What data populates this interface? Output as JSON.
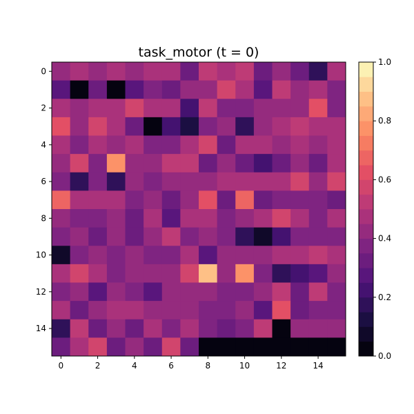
{
  "chart_data": {
    "type": "heatmap",
    "title": "task_motor (t = 0)",
    "xlabel": "",
    "ylabel": "",
    "colormap": "magma",
    "colorbar": {
      "range": [
        0,
        1
      ],
      "levels": 20,
      "ticks": [
        0.0,
        0.2,
        0.4,
        0.6,
        0.8,
        1.0
      ],
      "tick_labels": [
        "0.0",
        "0.2",
        "0.4",
        "0.6",
        "0.8",
        "1.0"
      ]
    },
    "x_ticks": [
      0,
      2,
      4,
      6,
      8,
      10,
      12,
      14
    ],
    "y_ticks": [
      0,
      2,
      4,
      6,
      8,
      10,
      12,
      14
    ],
    "rows": 16,
    "cols": 16,
    "values": [
      [
        0.42,
        0.45,
        0.4,
        0.48,
        0.4,
        0.45,
        0.45,
        0.33,
        0.5,
        0.45,
        0.5,
        0.3,
        0.4,
        0.3,
        0.15,
        0.48
      ],
      [
        0.28,
        0.0,
        0.33,
        0.0,
        0.28,
        0.35,
        0.33,
        0.4,
        0.4,
        0.55,
        0.45,
        0.28,
        0.5,
        0.42,
        0.45,
        0.38
      ],
      [
        0.48,
        0.4,
        0.45,
        0.45,
        0.55,
        0.48,
        0.45,
        0.2,
        0.5,
        0.38,
        0.38,
        0.42,
        0.42,
        0.4,
        0.62,
        0.38
      ],
      [
        0.62,
        0.4,
        0.58,
        0.45,
        0.3,
        0.0,
        0.2,
        0.1,
        0.38,
        0.4,
        0.15,
        0.4,
        0.45,
        0.5,
        0.45,
        0.48
      ],
      [
        0.45,
        0.38,
        0.45,
        0.4,
        0.48,
        0.35,
        0.35,
        0.48,
        0.58,
        0.3,
        0.48,
        0.48,
        0.42,
        0.48,
        0.42,
        0.48
      ],
      [
        0.4,
        0.58,
        0.38,
        0.78,
        0.4,
        0.4,
        0.5,
        0.5,
        0.3,
        0.4,
        0.3,
        0.2,
        0.3,
        0.4,
        0.3,
        0.45
      ],
      [
        0.38,
        0.18,
        0.38,
        0.15,
        0.4,
        0.38,
        0.4,
        0.4,
        0.4,
        0.45,
        0.45,
        0.45,
        0.45,
        0.58,
        0.4,
        0.55
      ],
      [
        0.65,
        0.48,
        0.48,
        0.48,
        0.38,
        0.4,
        0.33,
        0.4,
        0.62,
        0.3,
        0.65,
        0.3,
        0.35,
        0.38,
        0.35,
        0.3
      ],
      [
        0.4,
        0.35,
        0.38,
        0.4,
        0.33,
        0.48,
        0.28,
        0.48,
        0.48,
        0.38,
        0.4,
        0.45,
        0.58,
        0.48,
        0.38,
        0.48
      ],
      [
        0.35,
        0.4,
        0.3,
        0.4,
        0.33,
        0.42,
        0.5,
        0.38,
        0.4,
        0.35,
        0.15,
        0.08,
        0.2,
        0.38,
        0.38,
        0.38
      ],
      [
        0.08,
        0.38,
        0.4,
        0.35,
        0.4,
        0.35,
        0.35,
        0.48,
        0.28,
        0.4,
        0.4,
        0.4,
        0.48,
        0.48,
        0.52,
        0.45
      ],
      [
        0.48,
        0.55,
        0.48,
        0.35,
        0.4,
        0.4,
        0.4,
        0.58,
        0.85,
        0.4,
        0.75,
        0.35,
        0.18,
        0.22,
        0.25,
        0.4
      ],
      [
        0.35,
        0.4,
        0.28,
        0.4,
        0.35,
        0.25,
        0.42,
        0.42,
        0.4,
        0.38,
        0.38,
        0.4,
        0.5,
        0.33,
        0.5,
        0.38
      ],
      [
        0.48,
        0.3,
        0.4,
        0.45,
        0.45,
        0.42,
        0.42,
        0.42,
        0.38,
        0.38,
        0.4,
        0.28,
        0.6,
        0.3,
        0.35,
        0.35
      ],
      [
        0.15,
        0.5,
        0.3,
        0.4,
        0.3,
        0.45,
        0.35,
        0.45,
        0.35,
        0.33,
        0.35,
        0.5,
        0.0,
        0.4,
        0.4,
        0.42
      ],
      [
        0.33,
        0.45,
        0.58,
        0.3,
        0.4,
        0.3,
        0.55,
        0.3,
        0.0,
        0.0,
        0.0,
        0.0,
        0.0,
        0.0,
        0.0,
        0.0
      ]
    ]
  }
}
